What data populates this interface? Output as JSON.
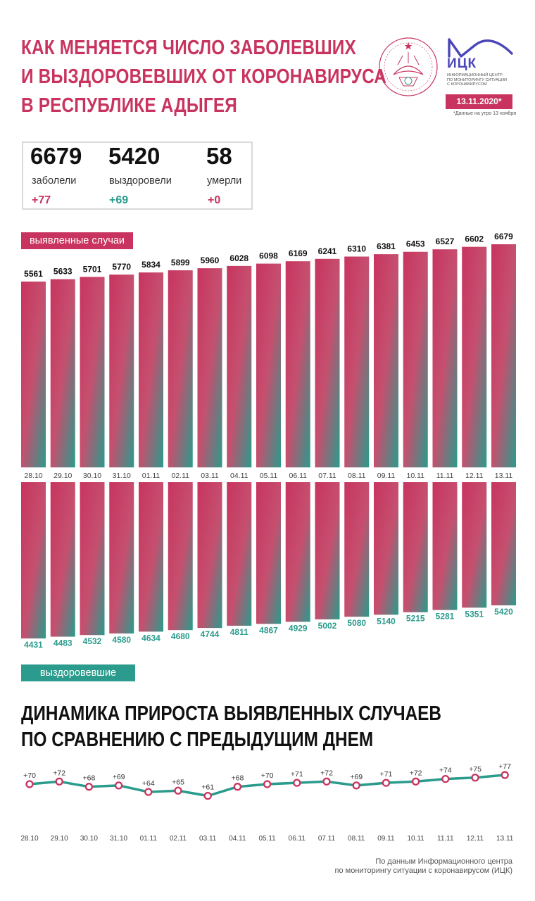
{
  "header": {
    "title_lines": [
      "КАК МЕНЯЕТСЯ ЧИСЛО ЗАБОЛЕВШИХ",
      "И ВЫЗДОРОВЕВШИХ ОТ КОРОНАВИРУСА",
      "В РЕСПУБЛИКЕ АДЫГЕЯ"
    ],
    "logo_name": "ИЦК",
    "logo_sub": [
      "ИНФОРМАЦИОННЫЙ ЦЕНТР",
      "ПО МОНИТОРИНГУ СИТУАЦИИ",
      "С КОРОНАВИРУСОМ"
    ],
    "date": "13.11.2020*",
    "date_note": "*Данные на утро 13 ноября"
  },
  "stats": {
    "cases": {
      "value": "6679",
      "label": "заболели",
      "delta": "+77"
    },
    "recovered": {
      "value": "5420",
      "label": "выздоровели",
      "delta": "+69"
    },
    "deaths": {
      "value": "58",
      "label": "умерли",
      "delta": "+0"
    }
  },
  "colors": {
    "accent": "#c8345f",
    "teal": "#2a9b8c"
  },
  "chart_data": [
    {
      "type": "bar",
      "categories": [
        "28.10",
        "29.10",
        "30.10",
        "31.10",
        "01.11",
        "02.11",
        "03.11",
        "04.11",
        "05.11",
        "06.11",
        "07.11",
        "08.11",
        "09.11",
        "10.11",
        "11.11",
        "12.11",
        "13.11"
      ],
      "series": [
        {
          "name": "выявленные случаи",
          "values": [
            5561,
            5633,
            5701,
            5770,
            5834,
            5899,
            5960,
            6028,
            6098,
            6169,
            6241,
            6310,
            6381,
            6453,
            6527,
            6602,
            6679
          ]
        },
        {
          "name": "выздоровевшие",
          "values": [
            4431,
            4483,
            4532,
            4580,
            4634,
            4680,
            4744,
            4811,
            4867,
            4929,
            5002,
            5080,
            5140,
            5215,
            5281,
            5351,
            5420
          ]
        }
      ]
    },
    {
      "type": "line",
      "title": "ДИНАМИКА ПРИРОСТА ВЫЯВЛЕННЫХ СЛУЧАЕВ ПО СРАВНЕНИЮ С ПРЕДЫДУЩИМ ДНЕМ",
      "title_lines": [
        "ДИНАМИКА ПРИРОСТА ВЫЯВЛЕННЫХ СЛУЧАЕВ",
        "ПО СРАВНЕНИЮ С ПРЕДЫДУЩИМ ДНЕМ"
      ],
      "categories": [
        "28.10",
        "29.10",
        "30.10",
        "31.10",
        "01.11",
        "02.11",
        "03.11",
        "04.11",
        "05.11",
        "06.11",
        "07.11",
        "08.11",
        "09.11",
        "10.11",
        "11.11",
        "12.11",
        "13.11"
      ],
      "values": [
        70,
        72,
        68,
        69,
        64,
        65,
        61,
        68,
        70,
        71,
        72,
        69,
        71,
        72,
        74,
        75,
        77
      ],
      "labels": [
        "+70",
        "+72",
        "+68",
        "+69",
        "+64",
        "+65",
        "+61",
        "+68",
        "+70",
        "+71",
        "+72",
        "+69",
        "+71",
        "+72",
        "+74",
        "+75",
        "+77"
      ]
    }
  ],
  "source_lines": [
    "По данным Информационного центра",
    "по мониторингу ситуации с коронавирусом (ИЦК)"
  ]
}
